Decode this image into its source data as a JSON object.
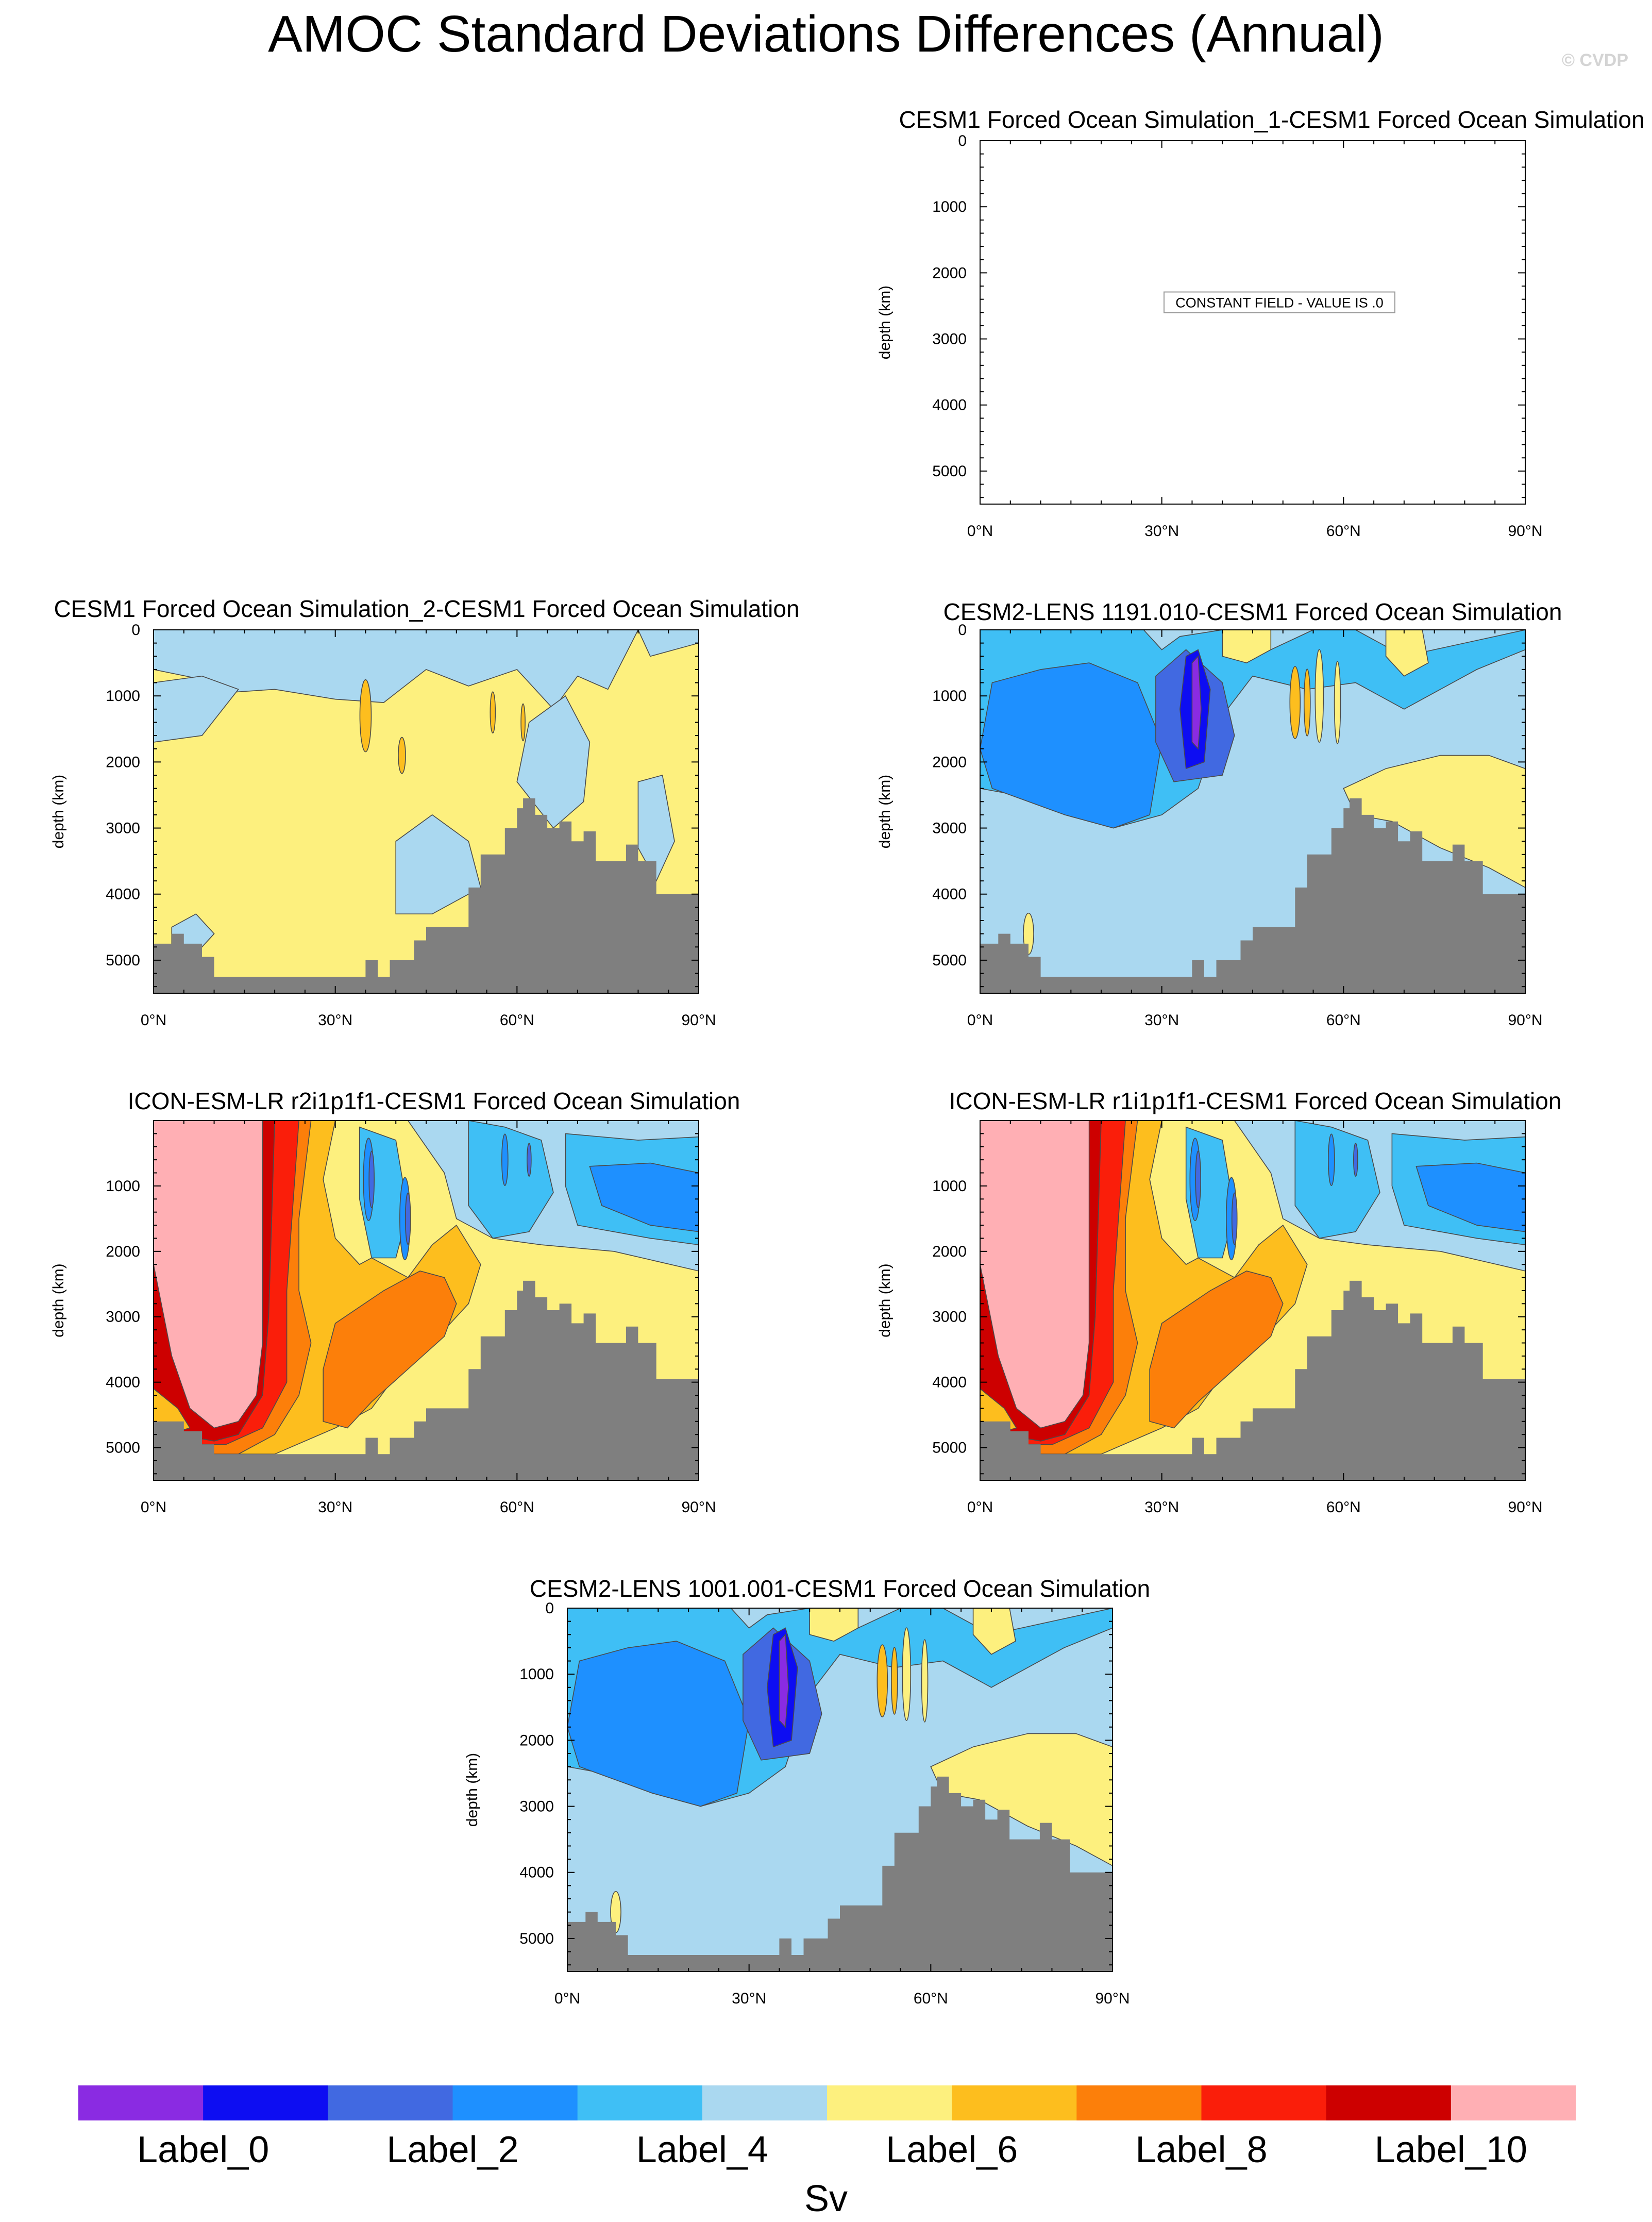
{
  "page": {
    "title": "AMOC Standard Deviations Differences (Annual)",
    "watermark": "© CVDP"
  },
  "chart_data": [
    {
      "type": "contour",
      "title": "CESM1 Forced Ocean Simulation_1-CESM1 Forced Ocean Simulation",
      "xlabel": "",
      "ylabel": "depth (km)",
      "xticks": [
        "0°N",
        "30°N",
        "60°N",
        "90°N"
      ],
      "yticks": [
        "0",
        "1000",
        "2000",
        "3000",
        "4000",
        "5000"
      ],
      "xlim": [
        0,
        90
      ],
      "ylim": [
        5500,
        0
      ],
      "annotation": "CONSTANT FIELD - VALUE IS .0",
      "field": "constant",
      "topo": []
    },
    {
      "type": "contour",
      "title": "CESM1 Forced Ocean Simulation_2-CESM1 Forced Ocean Simulation",
      "xlabel": "",
      "ylabel": "depth (km)",
      "xticks": [
        "0°N",
        "30°N",
        "60°N",
        "90°N"
      ],
      "yticks": [
        "0",
        "1000",
        "2000",
        "3000",
        "4000",
        "5000"
      ],
      "xlim": [
        0,
        90
      ],
      "ylim": [
        5500,
        0
      ],
      "field": "weak",
      "topo": [
        [
          0,
          4750
        ],
        [
          3,
          4750
        ],
        [
          3,
          4600
        ],
        [
          5,
          4600
        ],
        [
          5,
          4750
        ],
        [
          8,
          4750
        ],
        [
          8,
          4950
        ],
        [
          10,
          4950
        ],
        [
          10,
          5250
        ],
        [
          35,
          5250
        ],
        [
          35,
          5000
        ],
        [
          37,
          5000
        ],
        [
          37,
          5250
        ],
        [
          39,
          5250
        ],
        [
          39,
          5000
        ],
        [
          43,
          5000
        ],
        [
          43,
          4700
        ],
        [
          45,
          4700
        ],
        [
          45,
          4500
        ],
        [
          52,
          4500
        ],
        [
          52,
          3900
        ],
        [
          54,
          3900
        ],
        [
          54,
          3400
        ],
        [
          58,
          3400
        ],
        [
          58,
          3000
        ],
        [
          60,
          3000
        ],
        [
          60,
          2700
        ],
        [
          61,
          2700
        ],
        [
          61,
          2550
        ],
        [
          63,
          2550
        ],
        [
          63,
          2800
        ],
        [
          65,
          2800
        ],
        [
          65,
          3000
        ],
        [
          67,
          3000
        ],
        [
          67,
          2900
        ],
        [
          69,
          2900
        ],
        [
          69,
          3200
        ],
        [
          71,
          3200
        ],
        [
          71,
          3050
        ],
        [
          73,
          3050
        ],
        [
          73,
          3500
        ],
        [
          78,
          3500
        ],
        [
          78,
          3250
        ],
        [
          80,
          3250
        ],
        [
          80,
          3500
        ],
        [
          83,
          3500
        ],
        [
          83,
          4000
        ],
        [
          90,
          4000
        ]
      ]
    },
    {
      "type": "contour",
      "title": "CESM2-LENS 1191.010-CESM1 Forced Ocean Simulation",
      "xlabel": "",
      "ylabel": "depth (km)",
      "xticks": [
        "0°N",
        "30°N",
        "60°N",
        "90°N"
      ],
      "yticks": [
        "0",
        "1000",
        "2000",
        "3000",
        "4000",
        "5000"
      ],
      "xlim": [
        0,
        90
      ],
      "ylim": [
        5500,
        0
      ],
      "field": "lens",
      "topo": [
        [
          0,
          4750
        ],
        [
          3,
          4750
        ],
        [
          3,
          4600
        ],
        [
          5,
          4600
        ],
        [
          5,
          4750
        ],
        [
          8,
          4750
        ],
        [
          8,
          4950
        ],
        [
          10,
          4950
        ],
        [
          10,
          5250
        ],
        [
          35,
          5250
        ],
        [
          35,
          5000
        ],
        [
          37,
          5000
        ],
        [
          37,
          5250
        ],
        [
          39,
          5250
        ],
        [
          39,
          5000
        ],
        [
          43,
          5000
        ],
        [
          43,
          4700
        ],
        [
          45,
          4700
        ],
        [
          45,
          4500
        ],
        [
          52,
          4500
        ],
        [
          52,
          3900
        ],
        [
          54,
          3900
        ],
        [
          54,
          3400
        ],
        [
          58,
          3400
        ],
        [
          58,
          3000
        ],
        [
          60,
          3000
        ],
        [
          60,
          2700
        ],
        [
          61,
          2700
        ],
        [
          61,
          2550
        ],
        [
          63,
          2550
        ],
        [
          63,
          2800
        ],
        [
          65,
          2800
        ],
        [
          65,
          3000
        ],
        [
          67,
          3000
        ],
        [
          67,
          2900
        ],
        [
          69,
          2900
        ],
        [
          69,
          3200
        ],
        [
          71,
          3200
        ],
        [
          71,
          3050
        ],
        [
          73,
          3050
        ],
        [
          73,
          3500
        ],
        [
          78,
          3500
        ],
        [
          78,
          3250
        ],
        [
          80,
          3250
        ],
        [
          80,
          3500
        ],
        [
          83,
          3500
        ],
        [
          83,
          4000
        ],
        [
          90,
          4000
        ]
      ]
    },
    {
      "type": "contour",
      "title": "ICON-ESM-LR r2i1p1f1-CESM1 Forced Ocean Simulation",
      "xlabel": "",
      "ylabel": "depth (km)",
      "xticks": [
        "0°N",
        "30°N",
        "60°N",
        "90°N"
      ],
      "yticks": [
        "1000",
        "2000",
        "3000",
        "4000",
        "5000"
      ],
      "xlim": [
        0,
        90
      ],
      "ylim": [
        5500,
        0
      ],
      "field": "icon",
      "topo": [
        [
          0,
          4600
        ],
        [
          5,
          4600
        ],
        [
          5,
          4750
        ],
        [
          8,
          4750
        ],
        [
          8,
          4950
        ],
        [
          10,
          4950
        ],
        [
          10,
          5100
        ],
        [
          35,
          5100
        ],
        [
          35,
          4850
        ],
        [
          37,
          4850
        ],
        [
          37,
          5100
        ],
        [
          39,
          5100
        ],
        [
          39,
          4850
        ],
        [
          43,
          4850
        ],
        [
          43,
          4600
        ],
        [
          45,
          4600
        ],
        [
          45,
          4400
        ],
        [
          52,
          4400
        ],
        [
          52,
          3800
        ],
        [
          54,
          3800
        ],
        [
          54,
          3300
        ],
        [
          58,
          3300
        ],
        [
          58,
          2900
        ],
        [
          60,
          2900
        ],
        [
          60,
          2600
        ],
        [
          61,
          2600
        ],
        [
          61,
          2450
        ],
        [
          63,
          2450
        ],
        [
          63,
          2700
        ],
        [
          65,
          2700
        ],
        [
          65,
          2900
        ],
        [
          67,
          2900
        ],
        [
          67,
          2800
        ],
        [
          69,
          2800
        ],
        [
          69,
          3100
        ],
        [
          71,
          3100
        ],
        [
          71,
          2950
        ],
        [
          73,
          2950
        ],
        [
          73,
          3400
        ],
        [
          78,
          3400
        ],
        [
          78,
          3150
        ],
        [
          80,
          3150
        ],
        [
          80,
          3400
        ],
        [
          83,
          3400
        ],
        [
          83,
          3950
        ],
        [
          90,
          3950
        ]
      ]
    },
    {
      "type": "contour",
      "title": "ICON-ESM-LR r1i1p1f1-CESM1 Forced Ocean Simulation",
      "xlabel": "",
      "ylabel": "depth (km)",
      "xticks": [
        "0°N",
        "30°N",
        "60°N",
        "90°N"
      ],
      "yticks": [
        "1000",
        "2000",
        "3000",
        "4000",
        "5000"
      ],
      "xlim": [
        0,
        90
      ],
      "ylim": [
        5500,
        0
      ],
      "field": "icon",
      "topo": [
        [
          0,
          4600
        ],
        [
          5,
          4600
        ],
        [
          5,
          4750
        ],
        [
          8,
          4750
        ],
        [
          8,
          4950
        ],
        [
          10,
          4950
        ],
        [
          10,
          5100
        ],
        [
          35,
          5100
        ],
        [
          35,
          4850
        ],
        [
          37,
          4850
        ],
        [
          37,
          5100
        ],
        [
          39,
          5100
        ],
        [
          39,
          4850
        ],
        [
          43,
          4850
        ],
        [
          43,
          4600
        ],
        [
          45,
          4600
        ],
        [
          45,
          4400
        ],
        [
          52,
          4400
        ],
        [
          52,
          3800
        ],
        [
          54,
          3800
        ],
        [
          54,
          3300
        ],
        [
          58,
          3300
        ],
        [
          58,
          2900
        ],
        [
          60,
          2900
        ],
        [
          60,
          2600
        ],
        [
          61,
          2600
        ],
        [
          61,
          2450
        ],
        [
          63,
          2450
        ],
        [
          63,
          2700
        ],
        [
          65,
          2700
        ],
        [
          65,
          2900
        ],
        [
          67,
          2900
        ],
        [
          67,
          2800
        ],
        [
          69,
          2800
        ],
        [
          69,
          3100
        ],
        [
          71,
          3100
        ],
        [
          71,
          2950
        ],
        [
          73,
          2950
        ],
        [
          73,
          3400
        ],
        [
          78,
          3400
        ],
        [
          78,
          3150
        ],
        [
          80,
          3150
        ],
        [
          80,
          3400
        ],
        [
          83,
          3400
        ],
        [
          83,
          3950
        ],
        [
          90,
          3950
        ]
      ]
    },
    {
      "type": "contour",
      "title": "CESM2-LENS 1001.001-CESM1 Forced Ocean Simulation",
      "xlabel": "",
      "ylabel": "depth (km)",
      "xticks": [
        "0°N",
        "30°N",
        "60°N",
        "90°N"
      ],
      "yticks": [
        "0",
        "1000",
        "2000",
        "3000",
        "4000",
        "5000"
      ],
      "xlim": [
        0,
        90
      ],
      "ylim": [
        5500,
        0
      ],
      "field": "lens",
      "topo": [
        [
          0,
          4750
        ],
        [
          3,
          4750
        ],
        [
          3,
          4600
        ],
        [
          5,
          4600
        ],
        [
          5,
          4750
        ],
        [
          8,
          4750
        ],
        [
          8,
          4950
        ],
        [
          10,
          4950
        ],
        [
          10,
          5250
        ],
        [
          35,
          5250
        ],
        [
          35,
          5000
        ],
        [
          37,
          5000
        ],
        [
          37,
          5250
        ],
        [
          39,
          5250
        ],
        [
          39,
          5000
        ],
        [
          43,
          5000
        ],
        [
          43,
          4700
        ],
        [
          45,
          4700
        ],
        [
          45,
          4500
        ],
        [
          52,
          4500
        ],
        [
          52,
          3900
        ],
        [
          54,
          3900
        ],
        [
          54,
          3400
        ],
        [
          58,
          3400
        ],
        [
          58,
          3000
        ],
        [
          60,
          3000
        ],
        [
          60,
          2700
        ],
        [
          61,
          2700
        ],
        [
          61,
          2550
        ],
        [
          63,
          2550
        ],
        [
          63,
          2800
        ],
        [
          65,
          2800
        ],
        [
          65,
          3000
        ],
        [
          67,
          3000
        ],
        [
          67,
          2900
        ],
        [
          69,
          2900
        ],
        [
          69,
          3200
        ],
        [
          71,
          3200
        ],
        [
          71,
          3050
        ],
        [
          73,
          3050
        ],
        [
          73,
          3500
        ],
        [
          78,
          3500
        ],
        [
          78,
          3250
        ],
        [
          80,
          3250
        ],
        [
          80,
          3500
        ],
        [
          83,
          3500
        ],
        [
          83,
          4000
        ],
        [
          90,
          4000
        ]
      ]
    }
  ],
  "colorbar": {
    "colors": [
      "#8a2be2",
      "#0d0df2",
      "#4169e1",
      "#1e90ff",
      "#3fbff5",
      "#aad8f0",
      "#fdf07e",
      "#fdbe1e",
      "#fc7f0a",
      "#fa1e0a",
      "#cd0000",
      "#ffafb4"
    ],
    "labels": [
      "Label_0",
      "Label_2",
      "Label_4",
      "Label_6",
      "Label_8",
      "Label_10"
    ],
    "units": "Sv"
  }
}
